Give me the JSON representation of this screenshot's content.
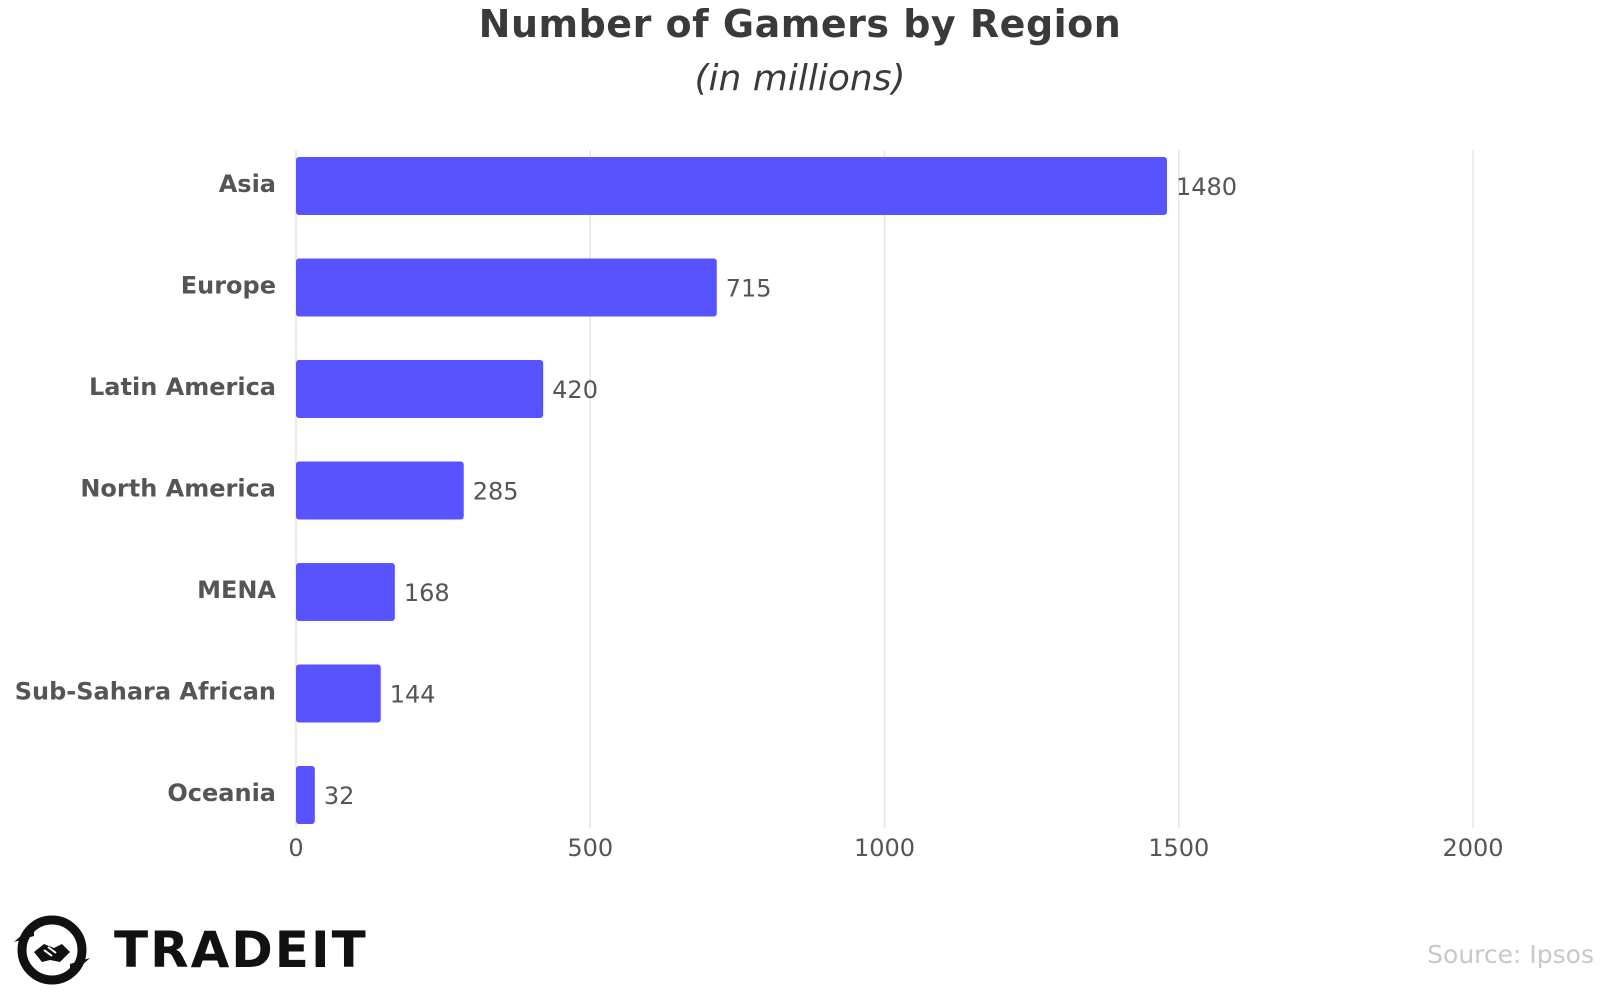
{
  "chart_data": {
    "type": "bar",
    "orientation": "horizontal",
    "title": "Number of Gamers by Region",
    "subtitle": "(in millions)",
    "categories": [
      "Asia",
      "Europe",
      "Latin America",
      "North America",
      "MENA",
      "Sub-Sahara African",
      "Oceania"
    ],
    "values": [
      1480,
      715,
      420,
      285,
      168,
      144,
      32
    ],
    "value_labels": [
      "1480",
      "715",
      "420",
      "285",
      "168",
      "144",
      "32"
    ],
    "xlim": [
      0,
      2000
    ],
    "x_ticks": [
      0,
      500,
      1000,
      1500,
      2000
    ],
    "x_tick_labels": [
      "0",
      "500",
      "1000",
      "1500",
      "2000"
    ],
    "xlabel": "",
    "ylabel": "",
    "grid": "vertical",
    "legend": "none",
    "bar_color": "#5653ff"
  },
  "branding": {
    "logo_text": "TRADEIT",
    "source": "Source: Ipsos"
  },
  "colors": {
    "bar": "#5653ff",
    "gridline": "#e6e6e6",
    "text": "#555555",
    "title": "#3a3a3a",
    "source": "#c8c8c8"
  }
}
